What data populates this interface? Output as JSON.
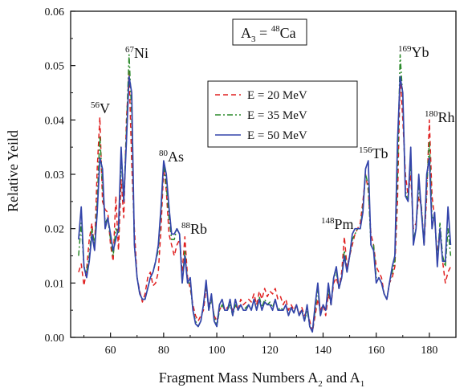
{
  "chart_data": {
    "type": "line",
    "xlabel": "Fragment Mass Numbers A",
    "xlabel_sub1": "2",
    "xlabel_mid": " and A",
    "xlabel_sub2": "1",
    "ylabel": "Relative Yeild",
    "xlim": [
      45,
      190
    ],
    "ylim": [
      0,
      0.06
    ],
    "xticks": [
      60,
      80,
      100,
      120,
      140,
      160,
      180
    ],
    "yticks": [
      0.0,
      0.01,
      0.02,
      0.03,
      0.04,
      0.05,
      0.06
    ],
    "ytick_labels": [
      "0.00",
      "0.01",
      "0.02",
      "0.03",
      "0.04",
      "0.05",
      "0.06"
    ],
    "grid": false,
    "legend_position": "upper-center",
    "box_label": {
      "prefix": "A",
      "sub": "3",
      "eq": " = ",
      "sup": "48",
      "elem": "Ca"
    },
    "annotations": [
      {
        "mass": "56",
        "elem": "V",
        "x": 56
      },
      {
        "mass": "67",
        "elem": "Ni",
        "x": 67
      },
      {
        "mass": "80",
        "elem": "As",
        "x": 80
      },
      {
        "mass": "88",
        "elem": "Rb",
        "x": 88
      },
      {
        "mass": "148",
        "elem": "Pm",
        "x": 148
      },
      {
        "mass": "156",
        "elem": "Tb",
        "x": 156
      },
      {
        "mass": "169",
        "elem": "Yb",
        "x": 169
      },
      {
        "mass": "180",
        "elem": "Rh",
        "x": 180
      }
    ],
    "x": [
      48,
      49,
      50,
      51,
      52,
      53,
      54,
      55,
      56,
      57,
      58,
      59,
      60,
      61,
      62,
      63,
      64,
      65,
      66,
      67,
      68,
      69,
      70,
      71,
      72,
      73,
      74,
      75,
      76,
      77,
      78,
      79,
      80,
      81,
      82,
      83,
      84,
      85,
      86,
      87,
      88,
      89,
      90,
      91,
      92,
      93,
      94,
      95,
      96,
      97,
      98,
      99,
      100,
      101,
      102,
      103,
      104,
      105,
      106,
      107,
      108,
      109,
      110,
      111,
      112,
      113,
      114,
      115,
      116,
      117,
      118,
      119,
      120,
      121,
      122,
      123,
      124,
      125,
      126,
      127,
      128,
      129,
      130,
      131,
      132,
      133,
      134,
      135,
      136,
      137,
      138,
      139,
      140,
      141,
      142,
      143,
      144,
      145,
      146,
      147,
      148,
      149,
      150,
      151,
      152,
      153,
      154,
      155,
      156,
      157,
      158,
      159,
      160,
      161,
      162,
      163,
      164,
      165,
      166,
      167,
      168,
      169,
      170,
      171,
      172,
      173,
      174,
      175,
      176,
      177,
      178,
      179,
      180,
      181,
      182,
      183,
      184,
      185,
      186,
      187,
      188
    ],
    "series": [
      {
        "name": "E = 20 MeV",
        "color": "#e02020",
        "dash": "6,4",
        "values": [
          0.012,
          0.0135,
          0.0095,
          0.0125,
          0.018,
          0.021,
          0.016,
          0.031,
          0.0405,
          0.025,
          0.0235,
          0.023,
          0.017,
          0.014,
          0.026,
          0.016,
          0.029,
          0.022,
          0.04,
          0.049,
          0.032,
          0.02,
          0.011,
          0.0085,
          0.0065,
          0.008,
          0.011,
          0.012,
          0.0095,
          0.01,
          0.012,
          0.02,
          0.031,
          0.027,
          0.019,
          0.017,
          0.015,
          0.017,
          0.018,
          0.012,
          0.0185,
          0.011,
          0.009,
          0.006,
          0.004,
          0.003,
          0.004,
          0.005,
          0.009,
          0.006,
          0.007,
          0.004,
          0.003,
          0.005,
          0.006,
          0.005,
          0.0055,
          0.006,
          0.005,
          0.006,
          0.005,
          0.007,
          0.006,
          0.0065,
          0.007,
          0.0065,
          0.008,
          0.006,
          0.0085,
          0.007,
          0.009,
          0.0075,
          0.0085,
          0.008,
          0.009,
          0.007,
          0.0075,
          0.006,
          0.007,
          0.005,
          0.006,
          0.005,
          0.006,
          0.004,
          0.0055,
          0.004,
          0.005,
          0.003,
          0.001,
          0.004,
          0.007,
          0.005,
          0.006,
          0.004,
          0.008,
          0.006,
          0.01,
          0.011,
          0.009,
          0.012,
          0.0185,
          0.013,
          0.015,
          0.017,
          0.019,
          0.02,
          0.021,
          0.025,
          0.03,
          0.027,
          0.019,
          0.017,
          0.013,
          0.012,
          0.011,
          0.008,
          0.007,
          0.01,
          0.011,
          0.013,
          0.025,
          0.048,
          0.04,
          0.03,
          0.026,
          0.03,
          0.02,
          0.021,
          0.026,
          0.024,
          0.017,
          0.026,
          0.04,
          0.026,
          0.022,
          0.015,
          0.02,
          0.014,
          0.01,
          0.012,
          0.013
        ]
      },
      {
        "name": "E = 35 MeV",
        "color": "#2a8a2a",
        "dash": "7,3,2,3",
        "values": [
          0.015,
          0.021,
          0.013,
          0.012,
          0.015,
          0.02,
          0.017,
          0.025,
          0.037,
          0.028,
          0.021,
          0.022,
          0.018,
          0.015,
          0.02,
          0.019,
          0.033,
          0.025,
          0.038,
          0.052,
          0.041,
          0.017,
          0.011,
          0.008,
          0.007,
          0.007,
          0.009,
          0.011,
          0.012,
          0.014,
          0.016,
          0.023,
          0.032,
          0.028,
          0.022,
          0.018,
          0.018,
          0.02,
          0.019,
          0.01,
          0.016,
          0.01,
          0.01,
          0.005,
          0.003,
          0.002,
          0.003,
          0.006,
          0.01,
          0.005,
          0.007,
          0.004,
          0.002,
          0.005,
          0.006,
          0.005,
          0.005,
          0.006,
          0.004,
          0.006,
          0.005,
          0.006,
          0.005,
          0.0055,
          0.006,
          0.005,
          0.007,
          0.005,
          0.0075,
          0.0055,
          0.007,
          0.006,
          0.0065,
          0.0055,
          0.007,
          0.005,
          0.0055,
          0.005,
          0.006,
          0.004,
          0.0055,
          0.0045,
          0.006,
          0.004,
          0.005,
          0.003,
          0.005,
          0.002,
          0.001,
          0.005,
          0.009,
          0.004,
          0.006,
          0.005,
          0.009,
          0.006,
          0.011,
          0.012,
          0.009,
          0.011,
          0.016,
          0.012,
          0.015,
          0.018,
          0.019,
          0.02,
          0.02,
          0.024,
          0.03,
          0.028,
          0.017,
          0.017,
          0.011,
          0.011,
          0.01,
          0.008,
          0.007,
          0.01,
          0.012,
          0.014,
          0.03,
          0.052,
          0.044,
          0.027,
          0.025,
          0.033,
          0.018,
          0.02,
          0.028,
          0.024,
          0.017,
          0.028,
          0.036,
          0.022,
          0.022,
          0.014,
          0.021,
          0.015,
          0.013,
          0.02,
          0.015
        ]
      },
      {
        "name": "E = 50 MeV",
        "color": "#3344aa",
        "dash": "",
        "values": [
          0.018,
          0.024,
          0.013,
          0.011,
          0.014,
          0.019,
          0.016,
          0.023,
          0.033,
          0.031,
          0.02,
          0.022,
          0.019,
          0.016,
          0.018,
          0.02,
          0.035,
          0.025,
          0.036,
          0.048,
          0.045,
          0.017,
          0.011,
          0.008,
          0.007,
          0.007,
          0.009,
          0.011,
          0.012,
          0.014,
          0.017,
          0.024,
          0.0325,
          0.03,
          0.024,
          0.019,
          0.019,
          0.02,
          0.019,
          0.01,
          0.015,
          0.01,
          0.011,
          0.005,
          0.0025,
          0.002,
          0.003,
          0.006,
          0.0105,
          0.005,
          0.008,
          0.003,
          0.002,
          0.006,
          0.007,
          0.005,
          0.005,
          0.007,
          0.004,
          0.007,
          0.005,
          0.006,
          0.005,
          0.005,
          0.006,
          0.005,
          0.007,
          0.005,
          0.007,
          0.005,
          0.0065,
          0.006,
          0.006,
          0.005,
          0.007,
          0.005,
          0.005,
          0.005,
          0.006,
          0.004,
          0.0055,
          0.0045,
          0.006,
          0.004,
          0.005,
          0.003,
          0.006,
          0.002,
          0.001,
          0.006,
          0.01,
          0.004,
          0.006,
          0.005,
          0.01,
          0.006,
          0.011,
          0.013,
          0.009,
          0.011,
          0.015,
          0.012,
          0.015,
          0.019,
          0.02,
          0.02,
          0.02,
          0.023,
          0.031,
          0.0325,
          0.017,
          0.016,
          0.01,
          0.011,
          0.01,
          0.008,
          0.007,
          0.01,
          0.013,
          0.015,
          0.036,
          0.048,
          0.045,
          0.026,
          0.025,
          0.035,
          0.017,
          0.02,
          0.03,
          0.023,
          0.017,
          0.03,
          0.033,
          0.02,
          0.023,
          0.013,
          0.02,
          0.014,
          0.014,
          0.024,
          0.017
        ]
      }
    ]
  }
}
